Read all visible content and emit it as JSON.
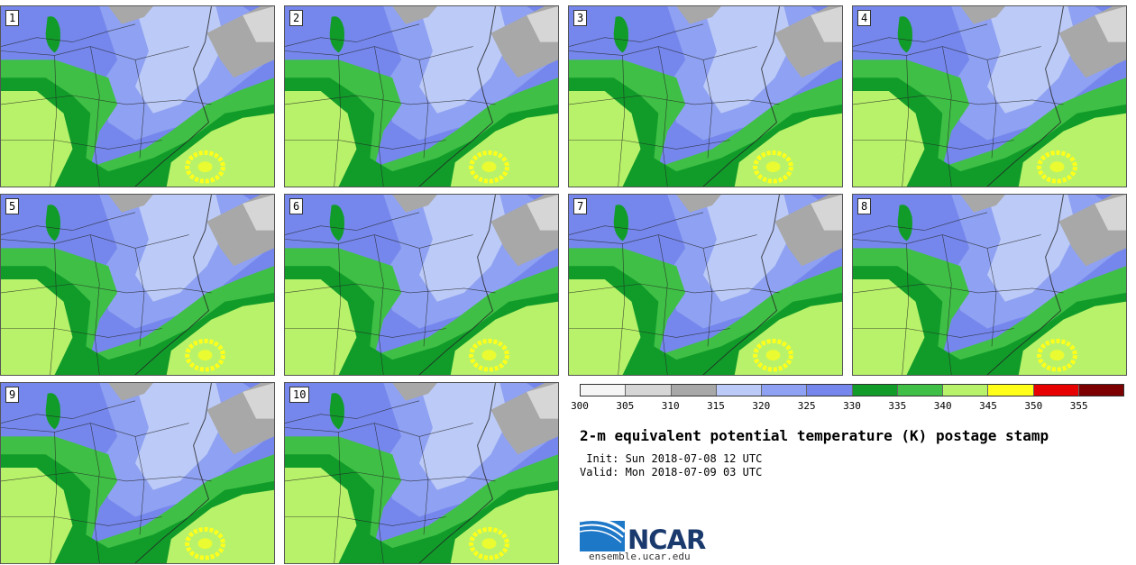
{
  "colors": {
    "c300": "#f5f5f5",
    "c305": "#d6d6d6",
    "c310": "#a8a8a8",
    "c315": "#bccaf7",
    "c320": "#8fa1f2",
    "c325": "#7587ec",
    "c330": "#119c2a",
    "c335": "#3fbf45",
    "c340": "#b8f26a",
    "c345": "#ffff1a",
    "c350": "#e60000",
    "c355": "#7d0000"
  },
  "panels": [
    {
      "label": "1"
    },
    {
      "label": "2"
    },
    {
      "label": "3"
    },
    {
      "label": "4"
    },
    {
      "label": "5"
    },
    {
      "label": "6"
    },
    {
      "label": "7"
    },
    {
      "label": "8"
    },
    {
      "label": "9"
    },
    {
      "label": "10"
    }
  ],
  "colorbar": {
    "ticks": [
      "300",
      "305",
      "310",
      "315",
      "320",
      "325",
      "330",
      "335",
      "340",
      "345",
      "350",
      "355"
    ]
  },
  "title": "2-m equivalent potential temperature (K) postage stamp",
  "init_line": " Init: Sun 2018-07-08 12 UTC",
  "valid_line": "Valid: Mon 2018-07-09 03 UTC",
  "logo_text": "NCAR",
  "url": "ensemble.ucar.edu"
}
